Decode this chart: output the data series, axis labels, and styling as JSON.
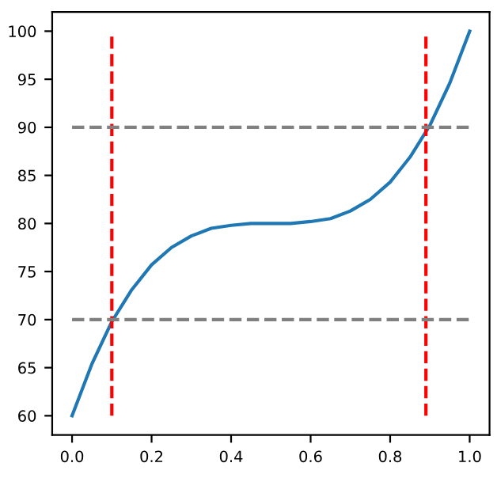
{
  "chart_data": {
    "type": "line",
    "x": [
      0,
      0.05,
      0.1,
      0.15,
      0.2,
      0.25,
      0.3,
      0.35,
      0.4,
      0.45,
      0.5,
      0.55,
      0.6,
      0.65,
      0.7,
      0.75,
      0.8,
      0.85,
      0.9,
      0.95,
      1.0
    ],
    "series": [
      {
        "color": "#1f77b4",
        "values": [
          60,
          65.4,
          69.8,
          73.1,
          75.7,
          77.5,
          78.7,
          79.5,
          79.8,
          80.0,
          80,
          80.0,
          80.2,
          80.5,
          81.3,
          82.5,
          84.3,
          86.9,
          90.2,
          94.6,
          100
        ]
      }
    ],
    "xlim": [
      -0.05,
      1.05
    ],
    "ylim": [
      58,
      102
    ],
    "xticks": [
      {
        "value": 0,
        "label": "0.0"
      },
      {
        "value": 0.2,
        "label": "0.2"
      },
      {
        "value": 0.4,
        "label": "0.4"
      },
      {
        "value": 0.6,
        "label": "0.6"
      },
      {
        "value": 0.8,
        "label": "0.8"
      },
      {
        "value": 1.0,
        "label": "1.0"
      }
    ],
    "yticks": [
      60,
      65,
      70,
      75,
      80,
      85,
      90,
      95,
      100
    ],
    "ref_lines": [
      {
        "axis": "x",
        "value": 0.1,
        "color": "#ff0000",
        "line_style": "dashed"
      },
      {
        "axis": "x",
        "value": 0.89,
        "color": "#ff0000",
        "line_style": "dashed"
      },
      {
        "axis": "y",
        "value": 70,
        "color": "#808080",
        "line_style": "dashed"
      },
      {
        "axis": "y",
        "value": 90,
        "color": "#808080",
        "line_style": "dashed"
      }
    ],
    "grid": false
  }
}
